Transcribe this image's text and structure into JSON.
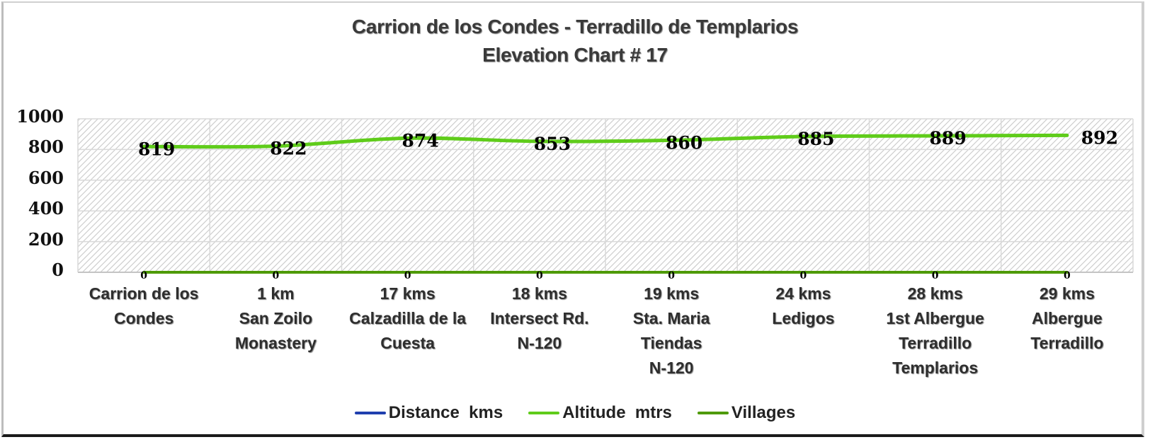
{
  "title": {
    "line1": "Carrion de los Condes - Terradillo de Templarios",
    "line2": "Elevation Chart # 17"
  },
  "colors": {
    "distance": "#1f3fae",
    "altitude": "#5fcc1a",
    "villages": "#4e9a06",
    "grid": "#d9d9d9",
    "hatch": "#c8c8c8"
  },
  "y_axis": {
    "ticks": [
      "1000",
      "800",
      "600",
      "400",
      "200",
      "0"
    ]
  },
  "x_axis": {
    "categories": [
      "Carrion de los\nCondes",
      "1  km\nSan Zoilo\nMonastery",
      "17  kms\nCalzadilla de la\nCuesta",
      "18 kms\nIntersect Rd.\nN-120",
      "19  kms\nSta. Maria\nTiendas\nN-120",
      "24  kms\nLedigos",
      "28 kms\n1st Albergue\nTerradillo\nTemplarios",
      "29  kms\nAlbergue\nTerradillo"
    ]
  },
  "legend": [
    {
      "label": "Distance  kms",
      "color": "#1f3fae"
    },
    {
      "label": "Altitude  mtrs",
      "color": "#5fcc1a"
    },
    {
      "label": "Villages",
      "color": "#4e9a06"
    }
  ],
  "chart_data": {
    "type": "line",
    "title": "Carrion de los Condes - Terradillo de Templarios\nElevation Chart # 17",
    "xlabel": "",
    "ylabel": "",
    "ylim": [
      0,
      1000
    ],
    "grid": true,
    "legend_position": "bottom",
    "categories": [
      "Carrion de los Condes",
      "1 km San Zoilo Monastery",
      "17 kms Calzadilla de la Cuesta",
      "18 kms Intersect Rd. N-120",
      "19 kms Sta. Maria Tiendas N-120",
      "24 kms Ledigos",
      "28 kms 1st Albergue Terradillo Templarios",
      "29 kms Albergue Terradillo"
    ],
    "series": [
      {
        "name": "Distance  kms",
        "values": [
          null,
          null,
          null,
          null,
          null,
          null,
          null,
          null
        ]
      },
      {
        "name": "Altitude  mtrs",
        "values": [
          819,
          822,
          874,
          853,
          860,
          885,
          889,
          892
        ],
        "data_labels": [
          "819",
          "822",
          "874",
          "853",
          "860",
          "885",
          "889",
          "892"
        ]
      },
      {
        "name": "Villages",
        "values": [
          0,
          0,
          0,
          0,
          0,
          0,
          0,
          0
        ],
        "data_labels": [
          "0",
          "0",
          "0",
          "0",
          "0",
          "0",
          "0",
          "0"
        ]
      }
    ]
  }
}
